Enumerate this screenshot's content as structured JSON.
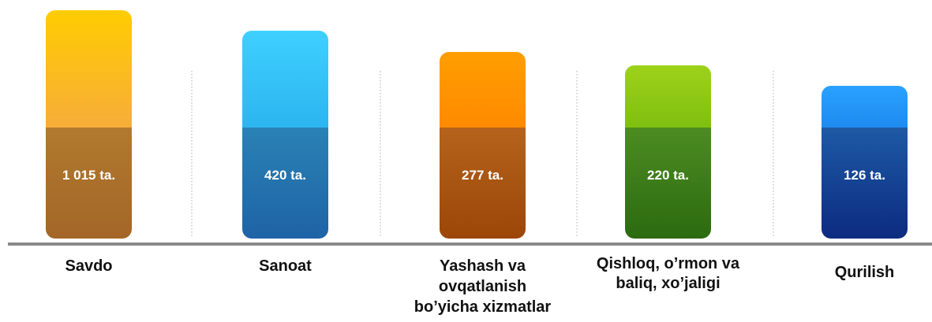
{
  "items": [
    {
      "label_lines": [
        "Savdo"
      ],
      "value_text": "1 015 ta."
    },
    {
      "label_lines": [
        "Sanoat"
      ],
      "value_text": "420 ta."
    },
    {
      "label_lines": [
        "Yashash va",
        "ovqatlanish",
        "bo’yicha xizmatlar"
      ],
      "value_text": "277 ta."
    },
    {
      "label_lines": [
        "Qishloq, o’rmon va",
        "baliq, xo’jaligi"
      ],
      "value_text": "220 ta."
    },
    {
      "label_lines": [
        "Qurilish"
      ],
      "value_text": "126 ta."
    }
  ]
}
